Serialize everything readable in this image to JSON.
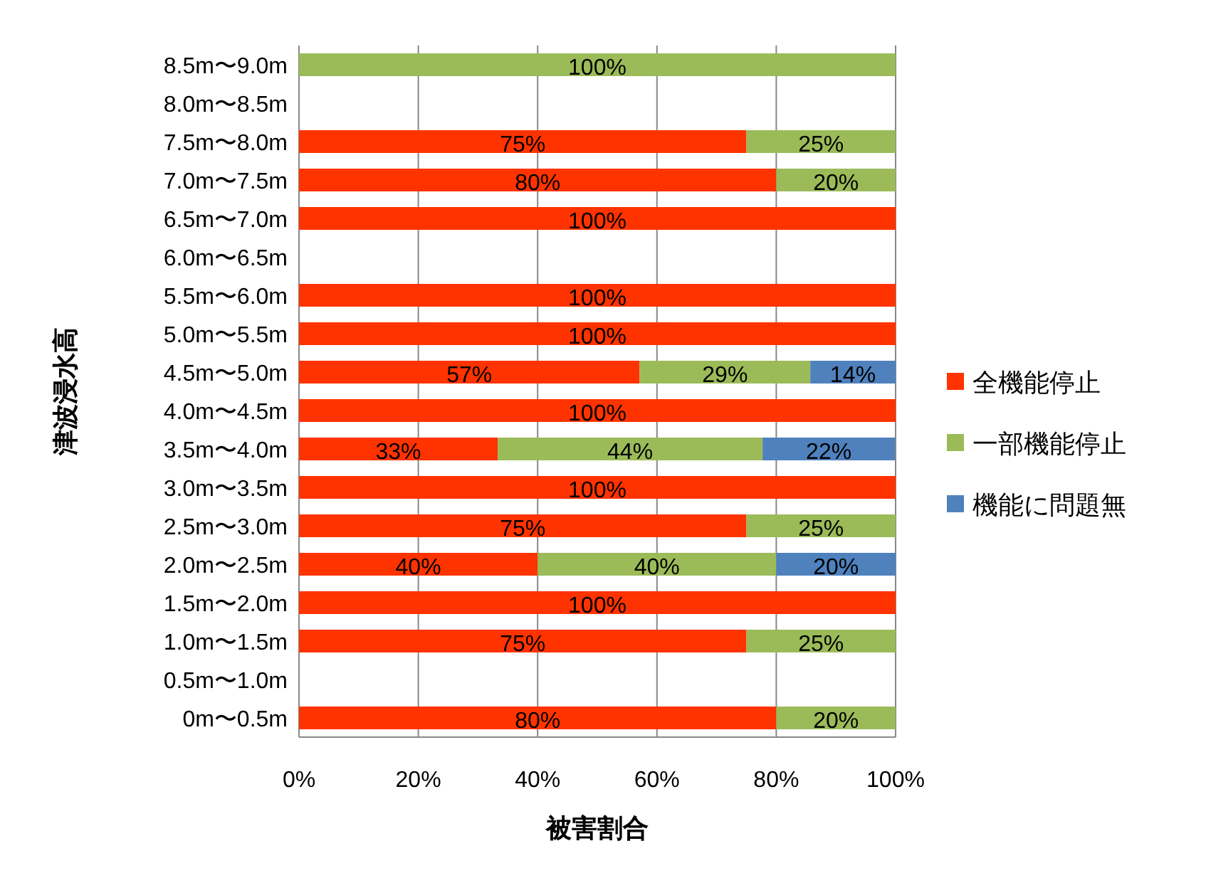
{
  "chart_data": {
    "type": "bar",
    "orientation": "horizontal",
    "stacked": true,
    "xlabel": "被害割合",
    "ylabel": "津波浸水高",
    "categories": [
      "8.5m〜9.0m",
      "8.0m〜8.5m",
      "7.5m〜8.0m",
      "7.0m〜7.5m",
      "6.5m〜7.0m",
      "6.0m〜6.5m",
      "5.5m〜6.0m",
      "5.0m〜5.5m",
      "4.5m〜5.0m",
      "4.0m〜4.5m",
      "3.5m〜4.0m",
      "3.0m〜3.5m",
      "2.5m〜3.0m",
      "2.0m〜2.5m",
      "1.5m〜2.0m",
      "1.0m〜1.5m",
      "0.5m〜1.0m",
      "0m〜0.5m"
    ],
    "series": [
      {
        "name": "全機能停止",
        "color": "#ff3300",
        "values": [
          null,
          null,
          75,
          80,
          100,
          null,
          100,
          100,
          57.1,
          100,
          33.3,
          100,
          75,
          40,
          100,
          75,
          null,
          80
        ],
        "value_labels": [
          null,
          null,
          "75%",
          "80%",
          "100%",
          null,
          "100%",
          "100%",
          "57%",
          "100%",
          "33%",
          "100%",
          "75%",
          "40%",
          "100%",
          "75%",
          null,
          "80%"
        ]
      },
      {
        "name": "一部機能停止",
        "color": "#9bbb59",
        "values": [
          100,
          null,
          25,
          20,
          null,
          null,
          null,
          null,
          28.6,
          null,
          44.4,
          null,
          25,
          40,
          null,
          25,
          null,
          20
        ],
        "value_labels": [
          "100%",
          null,
          "25%",
          "20%",
          null,
          null,
          null,
          null,
          "29%",
          null,
          "44%",
          null,
          "25%",
          "40%",
          null,
          "25%",
          null,
          "20%"
        ]
      },
      {
        "name": "機能に問題無",
        "color": "#4f81bd",
        "values": [
          null,
          null,
          null,
          null,
          null,
          null,
          null,
          null,
          14.3,
          null,
          22.2,
          null,
          null,
          20,
          null,
          null,
          null,
          null
        ],
        "value_labels": [
          null,
          null,
          null,
          null,
          null,
          null,
          null,
          null,
          "14%",
          null,
          "22%",
          null,
          null,
          "20%",
          null,
          null,
          null,
          null
        ]
      }
    ],
    "xlim": [
      0,
      100
    ],
    "xticks": [
      {
        "value": 0,
        "label": "0%"
      },
      {
        "value": 20,
        "label": "20%"
      },
      {
        "value": 40,
        "label": "40%"
      },
      {
        "value": 60,
        "label": "60%"
      },
      {
        "value": 80,
        "label": "80%"
      },
      {
        "value": 100,
        "label": "100%"
      }
    ],
    "grid": "x",
    "legend": "right"
  }
}
